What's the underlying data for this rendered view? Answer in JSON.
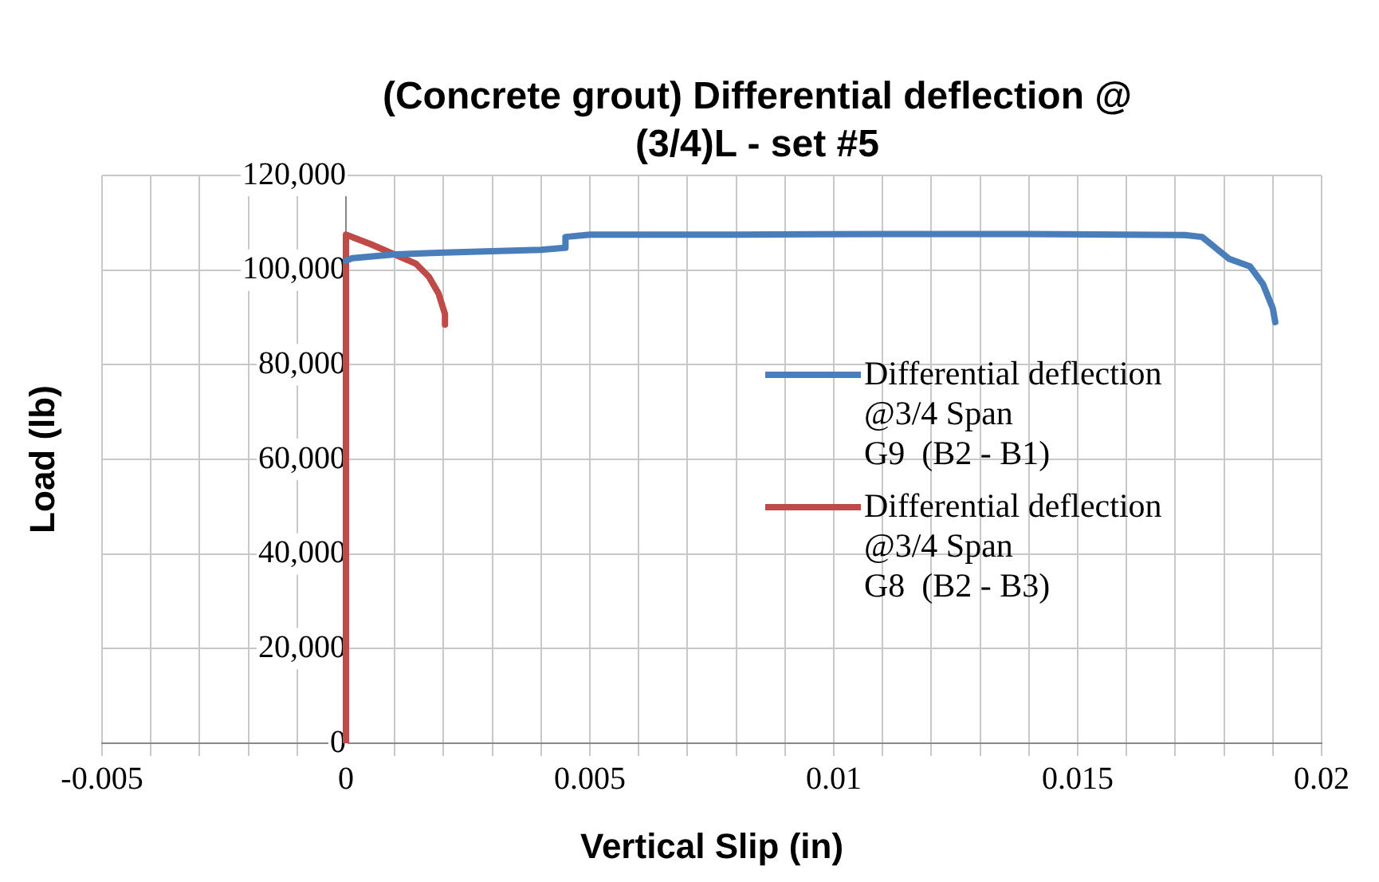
{
  "chart_data": {
    "type": "line",
    "title": "(Concrete grout) Differential deflection @ (3/4)L - set #5",
    "xlabel": "Vertical Slip (in)",
    "ylabel": "Load (lb)",
    "xlim": [
      -0.005,
      0.02
    ],
    "xticks": [
      -0.005,
      {
        "value": -0.004,
        "label": null
      },
      {
        "value": -0.003,
        "label": null
      },
      {
        "value": -0.002,
        "label": null
      },
      {
        "value": -0.001,
        "label": null
      },
      0,
      {
        "value": 0.001,
        "label": null
      },
      {
        "value": 0.002,
        "label": null
      },
      {
        "value": 0.003,
        "label": null
      },
      {
        "value": 0.004,
        "label": null
      },
      0.005,
      {
        "value": 0.006,
        "label": null
      },
      {
        "value": 0.007,
        "label": null
      },
      {
        "value": 0.008,
        "label": null
      },
      {
        "value": 0.009,
        "label": null
      },
      0.01,
      {
        "value": 0.011,
        "label": null
      },
      {
        "value": 0.012,
        "label": null
      },
      {
        "value": 0.013,
        "label": null
      },
      {
        "value": 0.014,
        "label": null
      },
      0.015,
      {
        "value": 0.016,
        "label": null
      },
      {
        "value": 0.017,
        "label": null
      },
      {
        "value": 0.018,
        "label": null
      },
      {
        "value": 0.019,
        "label": null
      },
      0.02
    ],
    "ylim": [
      0,
      120000
    ],
    "yticks": [
      0,
      {
        "value": 20000,
        "label": "20,000"
      },
      {
        "value": 40000,
        "label": "40,000"
      },
      {
        "value": 60000,
        "label": "60,000"
      },
      {
        "value": 80000,
        "label": "80,000"
      },
      {
        "value": 100000,
        "label": "100,000"
      },
      {
        "value": 120000,
        "label": "120,000"
      }
    ],
    "grid": true,
    "legend": "right",
    "marker": "none",
    "line_style": "solid",
    "series": [
      {
        "name": "Differential deflection\n@3/4 Span\nG9  (B2 - B1)",
        "color": "#4a7ebb",
        "x": [
          0,
          0.00013,
          0.001,
          0.002,
          0.003,
          0.004,
          0.00448,
          0.0045,
          0.005,
          0.008,
          0.011,
          0.014,
          0.016,
          0.0172,
          0.01755,
          0.0181,
          0.01853,
          0.0188,
          0.019,
          0.01905
        ],
        "values": [
          102000,
          102500,
          103300,
          103700,
          104000,
          104300,
          104700,
          107000,
          107500,
          107500,
          107600,
          107600,
          107500,
          107400,
          107000,
          102400,
          100800,
          97000,
          91900,
          89000
        ]
      },
      {
        "name": "Differential deflection\n@3/4 Span\nG8  (B2 - B3)",
        "color": "#be4b48",
        "x": [
          0,
          0,
          0.0005,
          0.001,
          0.00144,
          0.0017,
          0.0019,
          0.00203,
          0.00203
        ],
        "values": [
          0,
          107500,
          105500,
          103300,
          101300,
          98600,
          95000,
          90700,
          88500
        ]
      }
    ]
  }
}
